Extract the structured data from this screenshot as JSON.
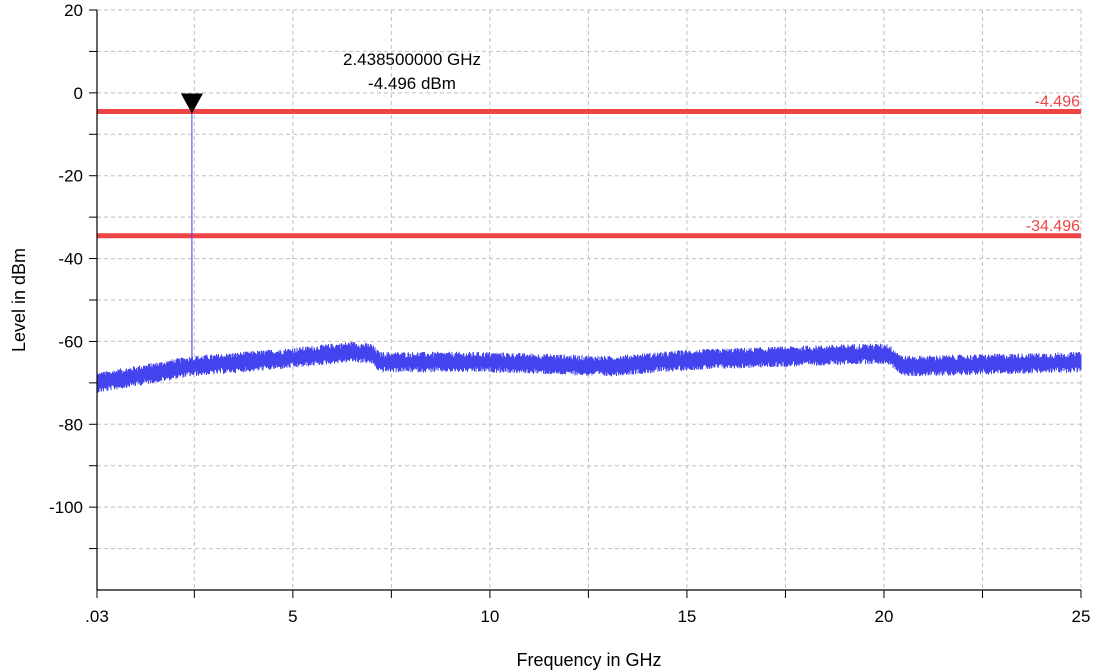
{
  "chart_data": {
    "type": "line",
    "title": "",
    "xlabel": "Frequency in GHz",
    "ylabel": "Level in dBm",
    "xlim": [
      0.03,
      25
    ],
    "ylim": [
      -120,
      20
    ],
    "x_ticks": [
      {
        "value": 0.03,
        "label": ".03"
      },
      {
        "value": 5,
        "label": "5"
      },
      {
        "value": 10,
        "label": "10"
      },
      {
        "value": 15,
        "label": "15"
      },
      {
        "value": 20,
        "label": "20"
      },
      {
        "value": 25,
        "label": "25"
      }
    ],
    "x_minor_ticks": [
      2.5,
      7.5,
      12.5,
      17.5,
      22.5
    ],
    "y_ticks": [
      {
        "value": 20,
        "label": "20"
      },
      {
        "value": 0,
        "label": "0"
      },
      {
        "value": -20,
        "label": "-20"
      },
      {
        "value": -40,
        "label": "-40"
      },
      {
        "value": -60,
        "label": "-60"
      },
      {
        "value": -80,
        "label": "-80"
      },
      {
        "value": -100,
        "label": "-100"
      }
    ],
    "y_minor_ticks": [
      10,
      -10,
      -30,
      -50,
      -70,
      -90,
      -110
    ],
    "grid": true,
    "series": [
      {
        "color": "#4444ee",
        "noise_profile": [
          {
            "x": 0.03,
            "y": -70
          },
          {
            "x": 2.4,
            "y": -66
          },
          {
            "x": 5,
            "y": -64
          },
          {
            "x": 6.5,
            "y": -62.5
          },
          {
            "x": 7,
            "y": -63
          },
          {
            "x": 7.2,
            "y": -65
          },
          {
            "x": 10,
            "y": -65
          },
          {
            "x": 13,
            "y": -66
          },
          {
            "x": 15,
            "y": -64.5
          },
          {
            "x": 19.5,
            "y": -63
          },
          {
            "x": 20.1,
            "y": -63
          },
          {
            "x": 20.5,
            "y": -66
          },
          {
            "x": 25,
            "y": -65
          }
        ],
        "noise_peak_to_peak_db": 5,
        "peak": {
          "x": 2.4385,
          "y": -4.496
        }
      }
    ],
    "reference_lines": [
      {
        "value": -4.496,
        "label": "-4.496",
        "color": "#ee4444"
      },
      {
        "value": -34.496,
        "label": "-34.496",
        "color": "#ee4444"
      }
    ],
    "marker": {
      "x": 2.4385,
      "y": -4.496,
      "freq_label": "2.438500000 GHz",
      "level_label": "-4.496 dBm"
    }
  }
}
